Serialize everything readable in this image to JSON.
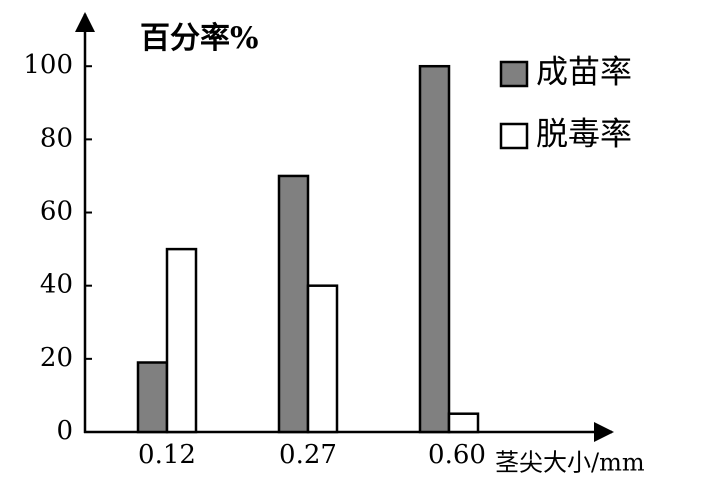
{
  "chart_data": {
    "type": "bar",
    "title": "百分率%",
    "x_label": "茎尖大小/mm",
    "categories": [
      "0.12",
      "0.27",
      "0.60"
    ],
    "series": [
      {
        "name": "成苗率",
        "color": "#808080",
        "values": [
          19,
          70,
          100
        ]
      },
      {
        "name": "脱毒率",
        "color": "#ffffff",
        "values": [
          50,
          40,
          5
        ]
      }
    ],
    "ylim": [
      0,
      114
    ],
    "yticks": [
      0,
      20,
      40,
      60,
      80,
      100
    ],
    "grid": false
  }
}
